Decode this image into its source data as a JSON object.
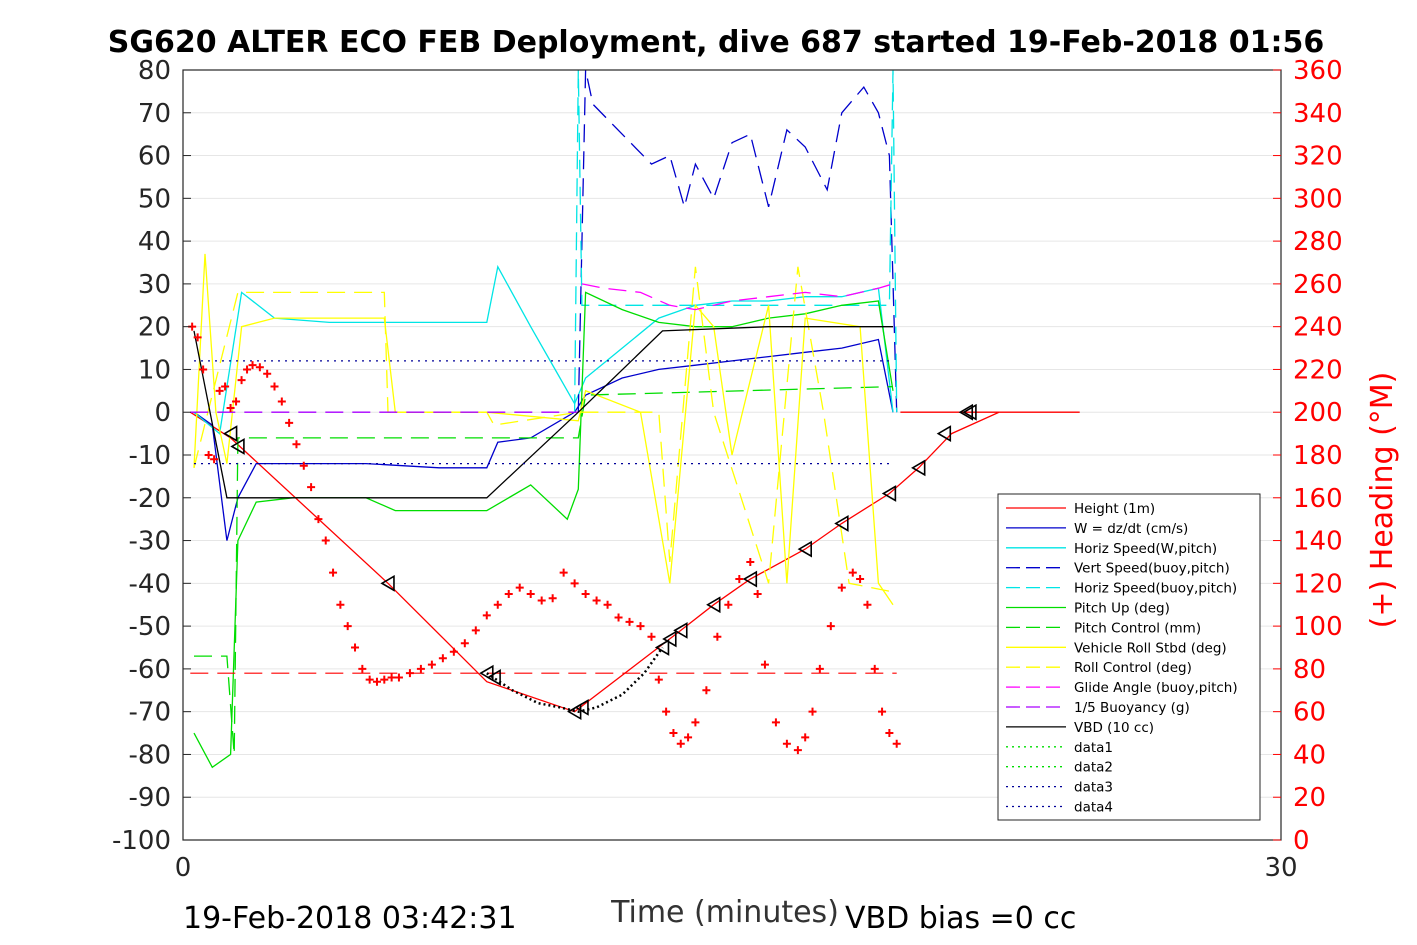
{
  "chart_data": {
    "type": "line",
    "title": "SG620 ALTER ECO FEB Deployment, dive 687 started 19-Feb-2018 01:56",
    "xlabel": "Time (minutes)",
    "ylabel_right": "(+) Heading (°M)",
    "footer_left": "19-Feb-2018 03:42:31",
    "footer_right": "VBD bias =0 cc",
    "xlim": [
      0,
      30
    ],
    "ylim": [
      -100,
      80
    ],
    "ylim_right": [
      0,
      360
    ],
    "x_ticks": [
      "0",
      "30"
    ],
    "y_ticks": [
      "80",
      "70",
      "60",
      "50",
      "40",
      "30",
      "20",
      "10",
      "0",
      "-10",
      "-20",
      "-30",
      "-40",
      "-50",
      "-60",
      "-70",
      "-80",
      "-90",
      "-100"
    ],
    "y_ticks_right": [
      "360",
      "340",
      "320",
      "300",
      "280",
      "260",
      "240",
      "220",
      "200",
      "180",
      "160",
      "140",
      "120",
      "100",
      "80",
      "60",
      "40",
      "20",
      "0"
    ],
    "grid": true,
    "legend_position": "right",
    "series": [
      {
        "name": "Height (1m)",
        "color": "#ff0000",
        "style": "solid",
        "x": [
          0.2,
          1.3,
          5.6,
          8.3,
          10.7,
          13.6,
          14.5,
          15.5,
          17.0,
          18.0,
          19.3,
          20.1,
          21.0,
          22.3,
          23.4,
          24.5,
          19.6
        ],
        "y": [
          0,
          -6,
          -40,
          -63,
          -70,
          -51,
          -45,
          -39,
          -32,
          -26,
          -19,
          -13,
          -5,
          0,
          0,
          0,
          0
        ]
      },
      {
        "name": "W = dz/dt (cm/s)",
        "color": "#0000cc",
        "style": "solid",
        "x": [
          0.3,
          0.8,
          1.2,
          1.5,
          2.0,
          3,
          5,
          7,
          8.3,
          8.6,
          9.5,
          10.7,
          11.0,
          12,
          13,
          14,
          15,
          16,
          17,
          18,
          19,
          19.4
        ],
        "y": [
          0,
          -3,
          -30,
          -20,
          -12,
          -12,
          -12,
          -13,
          -13,
          -7,
          -6,
          0,
          4,
          8,
          10,
          11,
          12,
          13,
          14,
          15,
          17,
          0
        ]
      },
      {
        "name": "Horiz Speed(W,pitch)",
        "color": "#00e5e5",
        "style": "solid",
        "x": [
          0.3,
          1.0,
          1.6,
          2.5,
          4,
          6,
          8.3,
          8.6,
          9.5,
          10.3,
          10.7,
          11,
          12,
          13,
          14,
          15,
          16,
          17,
          18,
          19,
          19.4
        ],
        "y": [
          0,
          -5,
          28,
          22,
          21,
          21,
          21,
          34,
          20,
          8,
          2,
          8,
          15,
          22,
          25,
          26,
          26,
          27,
          27,
          29,
          0
        ]
      },
      {
        "name": "Vert Speed(buoy,pitch)",
        "color": "#0000cc",
        "style": "dash",
        "x": [
          10.8,
          11.0,
          11.2,
          12,
          12.8,
          13.3,
          13.7,
          14,
          14.5,
          15,
          15.5,
          16,
          16.5,
          17,
          17.6,
          18,
          18.6,
          19,
          19.3,
          19.5
        ],
        "y": [
          0,
          80,
          72,
          65,
          58,
          60,
          48,
          58,
          50,
          63,
          65,
          48,
          66,
          62,
          52,
          70,
          76,
          70,
          60,
          0
        ]
      },
      {
        "name": "Horiz Speed(buoy,pitch)",
        "color": "#00e5e5",
        "style": "dash",
        "x": [
          10.7,
          10.8,
          10.9,
          19.3,
          19.4,
          19.5
        ],
        "y": [
          0,
          80,
          25,
          25,
          80,
          0
        ]
      },
      {
        "name": "Pitch Up (deg)",
        "color": "#00dd00",
        "style": "solid",
        "x": [
          0.3,
          0.8,
          1.3,
          1.5,
          2.0,
          3,
          5,
          5.8,
          8.3,
          9.5,
          10.5,
          10.8,
          11,
          12,
          13,
          14,
          15,
          16,
          17,
          18,
          19,
          19.4
        ],
        "y": [
          -75,
          -83,
          -80,
          -30,
          -21,
          -20,
          -20,
          -23,
          -23,
          -17,
          -25,
          -18,
          28,
          24,
          21,
          20,
          20,
          22,
          23,
          25,
          26,
          5
        ]
      },
      {
        "name": "Pitch Control (mm)",
        "color": "#00dd00",
        "style": "dash",
        "x": [
          0.3,
          1.2,
          1.4,
          1.5,
          8.3,
          10.8,
          11.0,
          19.4
        ],
        "y": [
          -57,
          -57,
          -80,
          -6,
          -6,
          -6,
          4,
          6
        ]
      },
      {
        "name": "Vehicle Roll Stbd (deg)",
        "color": "#ffff00",
        "style": "solid",
        "x": [
          0.3,
          0.6,
          0.9,
          1.2,
          1.6,
          2.5,
          4,
          5.5,
          5.8,
          8.3,
          10.8,
          11,
          12.5,
          13.3,
          14,
          14.5,
          15,
          16,
          16.5,
          17,
          18.5,
          19,
          19.4
        ],
        "y": [
          -13,
          37,
          0,
          -12,
          20,
          22,
          22,
          22,
          0,
          0,
          -2,
          5,
          0,
          -40,
          25,
          20,
          -10,
          25,
          -40,
          22,
          20,
          -40,
          -45
        ]
      },
      {
        "name": "Roll Control (deg)",
        "color": "#ffff00",
        "style": "dash",
        "x": [
          0.3,
          1.5,
          5.5,
          5.6,
          8.3,
          8.5,
          10.8,
          13.0,
          13.3,
          14.0,
          14.5,
          16.0,
          16.8,
          17.5,
          18.2,
          19.4
        ],
        "y": [
          -13,
          28,
          28,
          0,
          0,
          -3,
          0,
          0,
          -35,
          34,
          0,
          -40,
          34,
          0,
          -40,
          -42
        ]
      },
      {
        "name": "Glide Angle (buoy,pitch)",
        "color": "#ff00ff",
        "style": "dash",
        "x": [
          10.9,
          11.5,
          12.5,
          13.3,
          14,
          15,
          16,
          17,
          18,
          19,
          19.4
        ],
        "y": [
          30,
          29,
          28,
          25,
          24,
          26,
          27,
          28,
          27,
          29,
          30
        ]
      },
      {
        "name": "1/5 Buoyancy (g)",
        "color": "#aa00ff",
        "style": "dash",
        "x": [
          0.2,
          10.8
        ],
        "y": [
          0,
          0
        ]
      },
      {
        "name": "VBD (10 cc)",
        "color": "#000000",
        "style": "solid",
        "x": [
          0.3,
          1.2,
          8.3,
          10.8,
          13.1,
          16,
          19.4
        ],
        "y": [
          19,
          -20,
          -20,
          0,
          19,
          20,
          20
        ]
      },
      {
        "name": "data1",
        "color": "#00dd00",
        "style": "dot",
        "x": [],
        "y": []
      },
      {
        "name": "data2",
        "color": "#00dd00",
        "style": "dot",
        "x": [],
        "y": []
      },
      {
        "name": "data3",
        "color": "#000099",
        "style": "dot",
        "x": [
          0.3,
          19.4
        ],
        "y": [
          12,
          12
        ]
      },
      {
        "name": "data4",
        "color": "#000099",
        "style": "dot",
        "x": [
          0.3,
          19.4
        ],
        "y": [
          -12,
          -12
        ]
      }
    ],
    "extra_lines": [
      {
        "color": "#ff0000",
        "style": "dash",
        "x": [
          0.2,
          19.5
        ],
        "y": [
          -61,
          -61
        ]
      }
    ],
    "heading_points": {
      "color": "#ff0000",
      "x": [
        0.25,
        0.4,
        0.55,
        0.7,
        0.85,
        1.0,
        1.15,
        1.3,
        1.45,
        1.6,
        1.75,
        1.9,
        2.1,
        2.3,
        2.5,
        2.7,
        2.9,
        3.1,
        3.3,
        3.5,
        3.7,
        3.9,
        4.1,
        4.3,
        4.5,
        4.7,
        4.9,
        5.1,
        5.3,
        5.5,
        5.7,
        5.9,
        6.2,
        6.5,
        6.8,
        7.1,
        7.4,
        7.7,
        8.0,
        8.3,
        8.6,
        8.9,
        9.2,
        9.5,
        9.8,
        10.1,
        10.4,
        10.7,
        11.0,
        11.3,
        11.6,
        11.9,
        12.2,
        12.5,
        12.8,
        13.0,
        13.2,
        13.4,
        13.6,
        13.8,
        14.0,
        14.3,
        14.6,
        14.9,
        15.2,
        15.5,
        15.7,
        15.9,
        16.2,
        16.5,
        16.8,
        17.0,
        17.2,
        17.4,
        17.7,
        18.0,
        18.3,
        18.5,
        18.7,
        18.9,
        19.1,
        19.3,
        19.5
      ],
      "heading": [
        240,
        235,
        220,
        180,
        178,
        210,
        212,
        202,
        205,
        215,
        220,
        222,
        221,
        218,
        212,
        205,
        195,
        185,
        175,
        165,
        150,
        140,
        125,
        110,
        100,
        90,
        80,
        75,
        74,
        75,
        76,
        76,
        78,
        80,
        82,
        85,
        88,
        92,
        98,
        105,
        110,
        115,
        118,
        115,
        112,
        113,
        125,
        120,
        115,
        112,
        110,
        104,
        102,
        100,
        95,
        75,
        60,
        50,
        45,
        48,
        55,
        70,
        95,
        110,
        122,
        130,
        115,
        82,
        55,
        45,
        42,
        48,
        60,
        80,
        100,
        118,
        125,
        122,
        110,
        80,
        60,
        50,
        45
      ]
    },
    "markers": {
      "color": "#000000",
      "x": [
        1.3,
        1.5,
        5.6,
        8.3,
        8.5,
        10.7,
        10.9,
        13.1,
        13.3,
        13.6,
        14.5,
        15.5,
        17.0,
        18.0,
        19.3,
        20.1,
        20.8,
        21.4,
        21.5
      ],
      "y": [
        -5,
        -8,
        -40,
        -61,
        -62,
        -70,
        -69,
        -55,
        -53,
        -51,
        -45,
        -39,
        -32,
        -26,
        -19,
        -13,
        -5,
        0,
        0
      ]
    },
    "dotted_track": {
      "color": "#000000",
      "x": [
        8.3,
        9.0,
        9.7,
        10.3,
        10.8,
        11.3,
        12.0,
        12.6,
        13.1
      ],
      "y": [
        -61,
        -65,
        -68,
        -69,
        -70,
        -69,
        -66,
        -61,
        -55
      ]
    }
  }
}
